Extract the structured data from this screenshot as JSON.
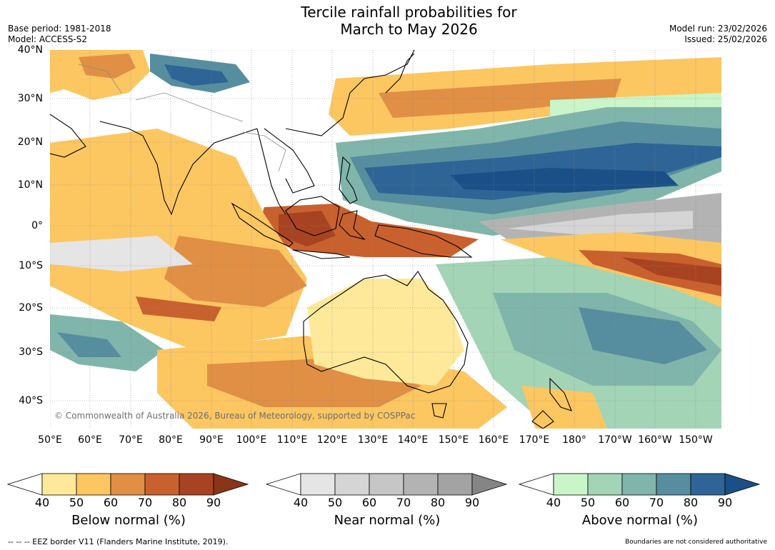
{
  "header": {
    "title_line1": "Tercile rainfall probabilities for",
    "title_line2": "March to May 2026",
    "base_period": "Base period: 1981-2018",
    "model": "Model: ACCESS-S2",
    "model_run": "Model run: 23/02/2026",
    "issued": "Issued: 25/02/2026"
  },
  "map": {
    "lat_ticks": [
      "40°N",
      "30°N",
      "20°N",
      "10°N",
      "0°",
      "10°S",
      "20°S",
      "30°S",
      "40°S"
    ],
    "lon_ticks": [
      "50°E",
      "60°E",
      "70°E",
      "80°E",
      "90°E",
      "100°E",
      "110°E",
      "120°E",
      "130°E",
      "140°E",
      "150°E",
      "160°E",
      "170°E",
      "180°",
      "170°W",
      "160°W",
      "150°W"
    ],
    "copyright": "© Commonwealth of Australia 2026, Bureau of Meteorology, supported by COSPPac",
    "colors": {
      "ocean_neutral": "#ffffff",
      "land_outline": "#000000",
      "border_grey": "#8c8c8c"
    }
  },
  "colorbars": [
    {
      "label": "Below normal (%)",
      "ticks": [
        "40",
        "50",
        "60",
        "70",
        "80",
        "90"
      ],
      "colors": [
        "#ffffff",
        "#fee99a",
        "#fcc661",
        "#e08f45",
        "#c9612f",
        "#a84321",
        "#8a3418"
      ]
    },
    {
      "label": "Near normal (%)",
      "ticks": [
        "40",
        "50",
        "60",
        "70",
        "80",
        "90"
      ],
      "colors": [
        "#ffffff",
        "#e5e5e5",
        "#d5d5d5",
        "#c6c6c6",
        "#b3b3b3",
        "#a3a3a3",
        "#858585"
      ]
    },
    {
      "label": "Above normal (%)",
      "ticks": [
        "40",
        "50",
        "60",
        "70",
        "80",
        "90"
      ],
      "colors": [
        "#ffffff",
        "#c9f5c9",
        "#a3d4b6",
        "#80b5ab",
        "#568e9f",
        "#2e6596",
        "#1b4f87"
      ]
    }
  ],
  "footer": {
    "eez_note": "--  --  -- EEZ border V11 (Flanders Marine Institute, 2019).",
    "disclaimer": "Boundaries are not considered authoritative"
  }
}
